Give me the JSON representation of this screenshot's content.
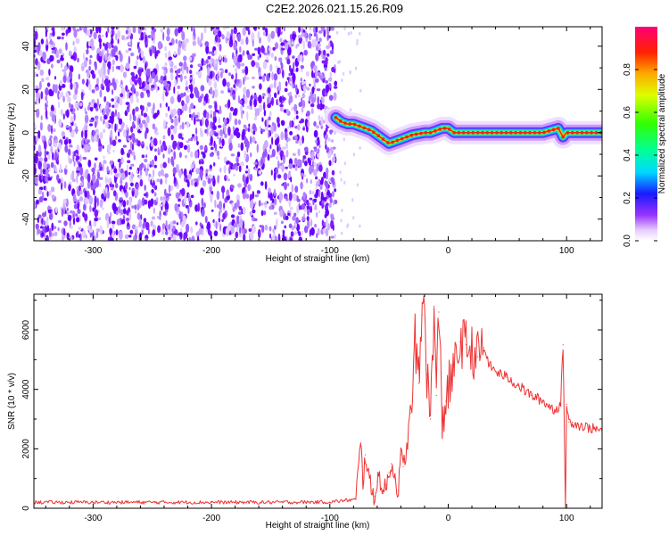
{
  "title": "C2E2.2026.021.15.26.R09",
  "chart_data": [
    {
      "type": "heatmap",
      "xlabel": "Height of straight line (km)",
      "ylabel": "Frequency (Hz)",
      "xlim": [
        -350,
        130
      ],
      "ylim": [
        -50,
        49
      ],
      "xticks": [
        -300,
        -200,
        -100,
        0,
        100
      ],
      "xtick_labels": [
        "-300",
        "-200",
        "-100",
        "0",
        "100"
      ],
      "yticks": [
        -40,
        -20,
        0,
        20,
        40
      ],
      "ytick_labels": [
        "-40",
        "-20",
        "0",
        "20",
        "40"
      ],
      "noise_region_x": [
        -350,
        -95
      ],
      "ridge": {
        "x": [
          -95,
          -90,
          -85,
          -80,
          -75,
          -70,
          -65,
          -60,
          -55,
          -50,
          -45,
          -40,
          -35,
          -30,
          -25,
          -20,
          -15,
          -10,
          -5,
          0,
          5,
          20,
          40,
          60,
          80,
          93,
          95,
          97,
          100,
          130
        ],
        "y": [
          7,
          5,
          4,
          4,
          3,
          2,
          1,
          -1,
          -3,
          -5,
          -4,
          -3,
          -2,
          -1,
          -0.5,
          0,
          0,
          1,
          2,
          2,
          0,
          0,
          0,
          0,
          0,
          2,
          0,
          -2,
          0,
          0
        ]
      },
      "colorbar": {
        "label": "Normalized spectral amplitude",
        "ticks": [
          0.0,
          0.2,
          0.4,
          0.6,
          0.8
        ],
        "tick_labels": [
          "0.0",
          "0.2",
          "0.4",
          "0.6",
          "0.8"
        ],
        "range": [
          0,
          1
        ]
      },
      "grid": false
    },
    {
      "type": "line",
      "xlabel": "Height of straight line (km)",
      "ylabel": "SNR (10 * v/v)",
      "xlim": [
        -350,
        130
      ],
      "ylim": [
        0,
        7200
      ],
      "xticks": [
        -300,
        -200,
        -100,
        0,
        100
      ],
      "xtick_labels": [
        "-300",
        "-200",
        "-100",
        "0",
        "100"
      ],
      "yticks": [
        0,
        2000,
        4000,
        6000
      ],
      "ytick_labels": [
        "0",
        "2000",
        "4000",
        "6000"
      ],
      "color": "#ee3333",
      "series": [
        {
          "x": [
            -350,
            -300,
            -250,
            -200,
            -150,
            -100,
            -78,
            -74,
            -72,
            -70,
            -68,
            -65,
            -62,
            -60,
            -58,
            -55,
            -52,
            -50,
            -48,
            -45,
            -42,
            -40,
            -38,
            -35,
            -32,
            -30,
            -28,
            -25,
            -22,
            -20,
            -18,
            -15,
            -12,
            -10,
            -8,
            -5,
            -2,
            0,
            5,
            10,
            15,
            20,
            25,
            30,
            35,
            40,
            50,
            60,
            70,
            80,
            90,
            95,
            97,
            99,
            100,
            102,
            105,
            110,
            120,
            130
          ],
          "y": [
            200,
            200,
            200,
            200,
            200,
            210,
            300,
            2200,
            900,
            1800,
            1300,
            600,
            400,
            900,
            1100,
            500,
            800,
            1200,
            1500,
            1000,
            600,
            1800,
            1400,
            2000,
            3200,
            3600,
            5800,
            4200,
            6500,
            7200,
            4500,
            3000,
            6800,
            3800,
            6600,
            3000,
            3600,
            4000,
            4600,
            5600,
            5500,
            5300,
            5100,
            5400,
            4800,
            4600,
            4400,
            4100,
            3800,
            3600,
            3300,
            3500,
            5500,
            0,
            3500,
            2900,
            2900,
            2800,
            2700,
            2600
          ]
        }
      ],
      "grid": false
    }
  ]
}
